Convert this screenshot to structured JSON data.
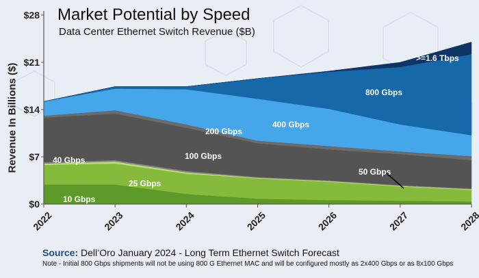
{
  "chart_data": {
    "type": "area",
    "stacked": true,
    "title": "Market Potential by Speed",
    "subtitle": "Data Center Ethernet Switch Revenue ($B)",
    "ylabel": "Revenue In Billions ($)",
    "xlabel": "",
    "x": [
      "2022",
      "2023",
      "2024",
      "2025",
      "2026",
      "2027",
      "2028"
    ],
    "ylim": [
      0,
      28
    ],
    "yticks": [
      0,
      7,
      14,
      21,
      28
    ],
    "ytick_labels": [
      "$0",
      "$7",
      "$14",
      "$21",
      "$28"
    ],
    "series": [
      {
        "name": "10 Gbps",
        "label": "10 Gbps",
        "values": [
          2.9,
          2.9,
          1.5,
          0.8,
          0.6,
          0.5,
          0.4
        ],
        "color": "#5e9a2a"
      },
      {
        "name": "25 Gbps",
        "label": "25 Gbps",
        "values": [
          2.9,
          3.1,
          3.0,
          3.0,
          2.7,
          2.1,
          1.7
        ],
        "color": "#86ba3c"
      },
      {
        "name": "40 Gbps",
        "label": "40 Gbps",
        "values": [
          0.2,
          0.3,
          0.2,
          0.1,
          0.1,
          0.1,
          0.1
        ],
        "color": "#b8dd70"
      },
      {
        "name": "50 Gbps",
        "label": "50 Gbps",
        "values": [
          0.2,
          0.2,
          0.2,
          0.1,
          0.1,
          0.1,
          0.1
        ],
        "color": "#868686"
      },
      {
        "name": "100 Gbps",
        "label": "100 Gbps",
        "values": [
          6.6,
          6.9,
          6.4,
          5.0,
          4.6,
          4.6,
          4.2
        ],
        "color": "#545454"
      },
      {
        "name": "200 Gbps",
        "label": "200 Gbps",
        "values": [
          0.3,
          0.5,
          0.5,
          0.4,
          0.5,
          0.4,
          0.6
        ],
        "color": "#6b6b6b"
      },
      {
        "name": "400 Gbps",
        "label": "400 Gbps",
        "values": [
          2.1,
          3.2,
          5.2,
          6.2,
          5.5,
          4.0,
          3.1
        ],
        "color": "#46a6ea"
      },
      {
        "name": "800 Gbps",
        "label": "800 Gbps",
        "values": [
          0.0,
          0.3,
          0.4,
          3.0,
          5.5,
          8.5,
          12.0
        ],
        "color": "#1668a8"
      },
      {
        "name": ">=1.6 Tbps",
        "label": ">=1.6 Tbps",
        "values": [
          0.0,
          0.0,
          0.0,
          0.0,
          0.1,
          0.7,
          1.8
        ],
        "color": "#0f3466"
      }
    ],
    "grid": false,
    "legend": "inline labels"
  },
  "source": {
    "label": "Source:",
    "text": "Dell’Oro January 2024 - Long Term Ethernet Switch Forecast"
  },
  "note": "Note - Initial 800 Gbps shipments will not be using 800 G Ethernet MAC and will be configured mostly as 2x400 Gbps or as 8x100 Gbps"
}
